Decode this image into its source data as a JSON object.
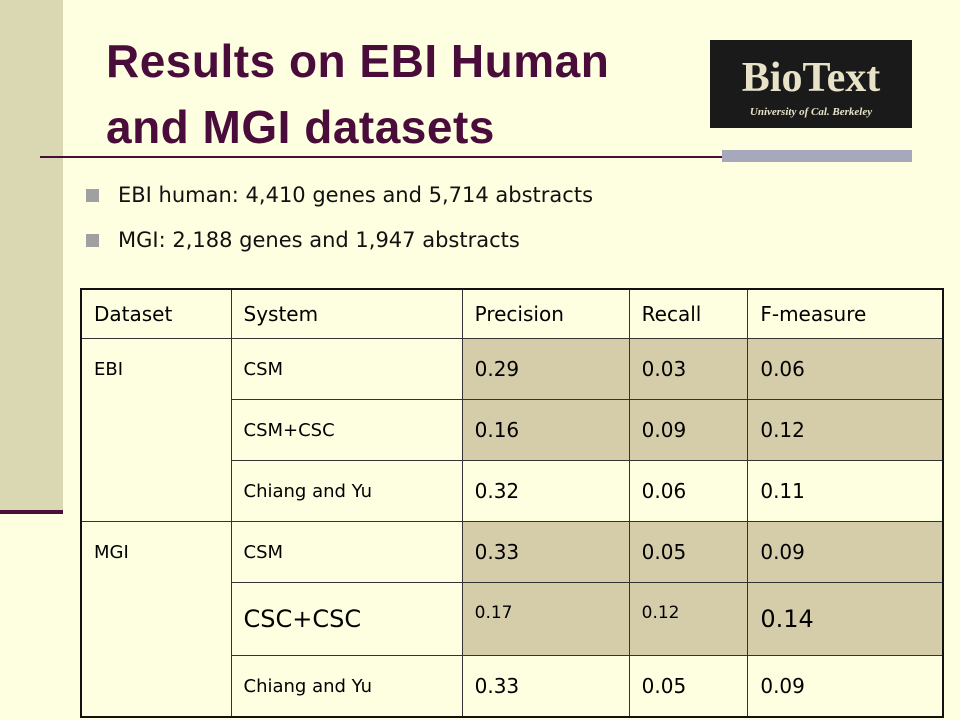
{
  "header": {
    "title_lines": [
      "Results on EBI Human",
      "and MGI datasets"
    ]
  },
  "logo": {
    "title": "BioText",
    "subtitle": "University of Cal. Berkeley"
  },
  "bullets": [
    "EBI human: 4,410 genes and 5,714 abstracts",
    "MGI: 2,188 genes and 1,947 abstracts"
  ],
  "table": {
    "header": [
      "Dataset",
      "System",
      "Precision",
      "Recall",
      "F-measure"
    ],
    "groups": [
      {
        "dataset": "EBI",
        "rows": [
          [
            "CSM",
            "0.29",
            "0.03",
            "0.06"
          ],
          [
            "CSM+CSC",
            "0.16",
            "0.09",
            "0.12"
          ],
          [
            "Chiang and Yu",
            "0.32",
            "0.06",
            "0.11"
          ]
        ]
      },
      {
        "dataset": "MGI",
        "rows": [
          [
            "CSM",
            "0.33",
            "0.05",
            "0.09"
          ],
          [
            "CSC+CSC",
            "0.17",
            "0.12",
            "0.14"
          ],
          [
            "Chiang and Yu",
            "0.33",
            "0.05",
            "0.09"
          ]
        ]
      }
    ]
  }
}
